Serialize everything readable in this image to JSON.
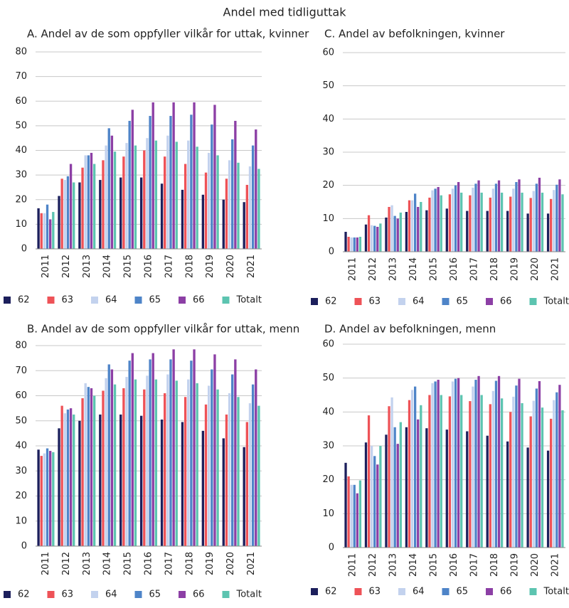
{
  "title": "Andel med tidliguttak",
  "chart_data": [
    {
      "type": "bar",
      "title": "A. Andel av de som oppfyller vilkår for uttak, kvinner",
      "categories": [
        "2011",
        "2012",
        "2013",
        "2014",
        "2015",
        "2016",
        "2017",
        "2018",
        "2019",
        "2020",
        "2021"
      ],
      "series": [
        {
          "name": "62",
          "color": "#1c1f5c",
          "values": [
            16.5,
            21.5,
            27,
            28,
            29,
            29,
            26.5,
            24,
            22,
            20,
            19
          ]
        },
        {
          "name": "63",
          "color": "#ee5257",
          "values": [
            14.5,
            28.5,
            33,
            36,
            37.5,
            40,
            37.5,
            34.5,
            31,
            28.5,
            26
          ]
        },
        {
          "name": "64",
          "color": "#c3d2ee",
          "values": [
            14.5,
            28,
            38,
            42,
            43,
            45,
            46,
            44,
            39,
            36,
            33.5
          ]
        },
        {
          "name": "65",
          "color": "#4e84c8",
          "values": [
            18,
            29.5,
            38,
            49,
            52,
            54,
            54,
            54.5,
            50.5,
            44.5,
            42
          ]
        },
        {
          "name": "66",
          "color": "#8c3fa5",
          "values": [
            12,
            34.5,
            39,
            46,
            56.5,
            59.5,
            59.5,
            59.5,
            58.5,
            52,
            48.5
          ]
        },
        {
          "name": "Totalt",
          "color": "#5cc4b0",
          "values": [
            15,
            27,
            34.5,
            39.5,
            42,
            44,
            43.5,
            41.5,
            38,
            35,
            32.5
          ]
        }
      ],
      "ylim": [
        0,
        80
      ],
      "yticks": [
        0,
        10,
        20,
        30,
        40,
        50,
        60,
        70,
        80
      ],
      "grid": true,
      "legend": "bottom"
    },
    {
      "type": "bar",
      "title": "B. Andel av de som oppfyller vilkår for uttak, menn",
      "categories": [
        "2011",
        "2012",
        "2013",
        "2014",
        "2015",
        "2016",
        "2017",
        "2018",
        "2019",
        "2020",
        "2021"
      ],
      "series": [
        {
          "name": "62",
          "color": "#1c1f5c",
          "values": [
            38.5,
            47,
            50,
            52.5,
            52.5,
            52,
            50.5,
            49.5,
            46,
            43,
            39.5
          ]
        },
        {
          "name": "63",
          "color": "#ee5257",
          "values": [
            36,
            56,
            59,
            62,
            63,
            62.5,
            61,
            59.5,
            56.5,
            52.5,
            49.5
          ]
        },
        {
          "name": "64",
          "color": "#c3d2ee",
          "values": [
            37,
            53,
            65,
            67,
            67.5,
            68,
            68.5,
            66.5,
            64,
            61,
            57
          ]
        },
        {
          "name": "65",
          "color": "#4e84c8",
          "values": [
            39,
            54.5,
            63.5,
            72.5,
            74,
            74.5,
            74.5,
            74,
            70.5,
            68.5,
            64.5
          ]
        },
        {
          "name": "66",
          "color": "#8c3fa5",
          "values": [
            38,
            55,
            63,
            70.5,
            77,
            77,
            78.5,
            78.5,
            76.5,
            74.5,
            70.5
          ]
        },
        {
          "name": "Totalt",
          "color": "#5cc4b0",
          "values": [
            37.5,
            52.5,
            60,
            64.5,
            66.5,
            66.5,
            66,
            65,
            62.5,
            59.5,
            56
          ]
        }
      ],
      "ylim": [
        0,
        80
      ],
      "yticks": [
        0,
        10,
        20,
        30,
        40,
        50,
        60,
        70,
        80
      ],
      "grid": true,
      "legend": "bottom"
    },
    {
      "type": "bar",
      "title": "C. Andel av befolkningen, kvinner",
      "categories": [
        "2011",
        "2012",
        "2013",
        "2014",
        "2015",
        "2016",
        "2017",
        "2018",
        "2019",
        "2020",
        "2021"
      ],
      "series": [
        {
          "name": "62",
          "color": "#1c1f5c",
          "values": [
            6,
            8.2,
            10.3,
            12,
            12.5,
            13,
            12.3,
            12.3,
            12.3,
            11.5,
            11.5
          ]
        },
        {
          "name": "63",
          "color": "#ee5257",
          "values": [
            4.5,
            11,
            13.5,
            15.5,
            16.3,
            17.3,
            17,
            16.3,
            16.6,
            16.2,
            15.9
          ]
        },
        {
          "name": "64",
          "color": "#c3d2ee",
          "values": [
            4.3,
            8,
            14,
            15.5,
            18.5,
            19,
            19.3,
            19,
            19,
            18.3,
            18.6
          ]
        },
        {
          "name": "65",
          "color": "#4e84c8",
          "values": [
            4.3,
            7.8,
            10.8,
            17.5,
            19,
            20,
            20.5,
            20.5,
            21,
            20.5,
            20.2
          ]
        },
        {
          "name": "66",
          "color": "#8c3fa5",
          "values": [
            4.3,
            7.5,
            10,
            13.5,
            19.5,
            21,
            21.5,
            21.5,
            21.8,
            22.3,
            21.8
          ]
        },
        {
          "name": "Totalt",
          "color": "#5cc4b0",
          "values": [
            4.5,
            8.5,
            11.8,
            15,
            17,
            17.8,
            17.8,
            17.8,
            17.8,
            17.8,
            17.3
          ]
        }
      ],
      "ylim": [
        0,
        60
      ],
      "yticks": [
        0,
        10,
        20,
        30,
        40,
        50,
        60
      ],
      "grid": true,
      "legend": "bottom"
    },
    {
      "type": "bar",
      "title": "D. Andel av befolkningen, menn",
      "categories": [
        "2011",
        "2012",
        "2013",
        "2014",
        "2015",
        "2016",
        "2017",
        "2018",
        "2019",
        "2020",
        "2021"
      ],
      "series": [
        {
          "name": "62",
          "color": "#1c1f5c",
          "values": [
            25,
            31,
            33.3,
            35.5,
            35.2,
            34.8,
            34.3,
            33,
            31.3,
            29.5,
            28.6
          ]
        },
        {
          "name": "63",
          "color": "#ee5257",
          "values": [
            21,
            39,
            41.7,
            43.5,
            45,
            44.6,
            43.2,
            42.3,
            40,
            38.7,
            38
          ]
        },
        {
          "name": "64",
          "color": "#c3d2ee",
          "values": [
            18.5,
            30,
            44.3,
            46.5,
            48.5,
            49,
            47.5,
            46.2,
            44.5,
            43.3,
            43.5
          ]
        },
        {
          "name": "65",
          "color": "#4e84c8",
          "values": [
            18.5,
            27,
            35.5,
            47.5,
            49,
            49.8,
            49.5,
            49.2,
            47.8,
            46.9,
            45.8
          ]
        },
        {
          "name": "66",
          "color": "#8c3fa5",
          "values": [
            16,
            24.5,
            30.6,
            37.8,
            49.5,
            50,
            50.6,
            50.6,
            49.8,
            49.1,
            48
          ]
        },
        {
          "name": "Totalt",
          "color": "#5cc4b0",
          "values": [
            19.8,
            30,
            37,
            42,
            45,
            45,
            45,
            44,
            42.6,
            41.3,
            40.5
          ]
        }
      ],
      "ylim": [
        0,
        60
      ],
      "yticks": [
        0,
        10,
        20,
        30,
        40,
        50,
        60
      ],
      "grid": true,
      "legend": "bottom"
    }
  ]
}
